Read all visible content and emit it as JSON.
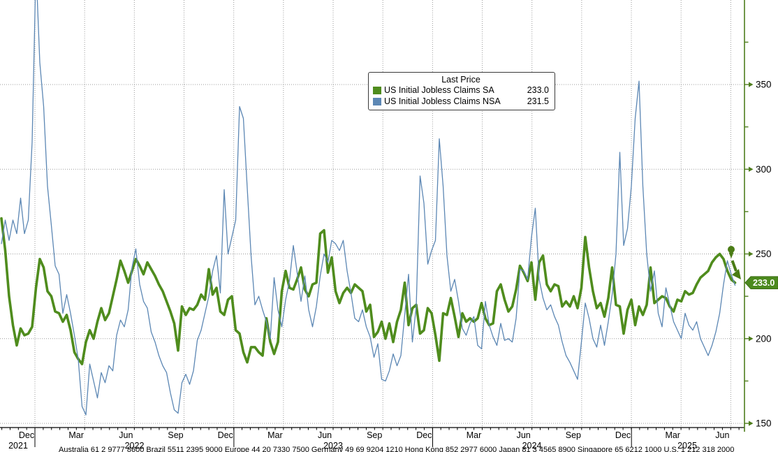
{
  "legend": {
    "title": "Last Price",
    "items": [
      {
        "label": "US Initial Jobless Claims SA",
        "value": "233.0"
      },
      {
        "label": "US Initial Jobless Claims NSA",
        "value": "231.5"
      }
    ]
  },
  "footer": "Australia 61 2 9777 8600 Brazil 5511 2395 9000 Europe 44 20 7330 7500 Germany 49 69 9204 1210 Hong Kong 852 2977 6000 Japan 81 3 4565 8900 Singapore 65 6212 1000 U.S. 1 212 318 2000",
  "chart_data": {
    "type": "line",
    "title": "Last Price",
    "frequency": "weekly",
    "x_range": "Nov 2021 - Jul 2025",
    "grid": true,
    "legend_position": "top-center",
    "y_axis_side": "right",
    "ylim": [
      150,
      350
    ],
    "y_ticks": [
      350,
      300,
      250,
      200,
      150
    ],
    "y_minor_ticks": [
      375,
      325,
      275,
      225,
      175
    ],
    "last_price_label": "233.0",
    "x_month_labels": [
      "Dec",
      "Mar",
      "Jun",
      "Sep",
      "Dec",
      "Mar",
      "Jun",
      "Sep",
      "Dec",
      "Mar",
      "Jun",
      "Sep",
      "Dec",
      "Mar",
      "Jun"
    ],
    "x_year_labels": [
      "2021",
      "2022",
      "2023",
      "2024",
      "2025"
    ],
    "series": [
      {
        "name": "US Initial Jobless Claims SA",
        "color": "#4f8c1d",
        "width": 3.6,
        "last": 233.0,
        "values": [
          271,
          252,
          225,
          208,
          196,
          206,
          202,
          203,
          207,
          230,
          247,
          242,
          228,
          225,
          216,
          215,
          210,
          214,
          205,
          192,
          188,
          185,
          198,
          205,
          200,
          210,
          218,
          211,
          215,
          225,
          235,
          246,
          240,
          233,
          240,
          247,
          243,
          238,
          245,
          241,
          237,
          232,
          228,
          222,
          216,
          209,
          193,
          219,
          214,
          218,
          217,
          220,
          226,
          223,
          241,
          226,
          230,
          216,
          214,
          223,
          225,
          205,
          203,
          192,
          186,
          195,
          195,
          192,
          190,
          212,
          198,
          191,
          198,
          228,
          240,
          230,
          229,
          235,
          242,
          229,
          225,
          232,
          233,
          262,
          264,
          239,
          248,
          228,
          221,
          227,
          230,
          227,
          232,
          230,
          228,
          216,
          220,
          201,
          204,
          210,
          200,
          209,
          198,
          210,
          217,
          233,
          208,
          218,
          220,
          203,
          205,
          218,
          215,
          202,
          187,
          215,
          214,
          224,
          213,
          201,
          215,
          210,
          212,
          210,
          212,
          221,
          212,
          208,
          209,
          228,
          232,
          223,
          216,
          219,
          229,
          243,
          239,
          234,
          245,
          223,
          245,
          249,
          232,
          228,
          232,
          231,
          219,
          222,
          219,
          225,
          218,
          230,
          260,
          242,
          228,
          218,
          221,
          213,
          224,
          242,
          220,
          219,
          203,
          217,
          223,
          208,
          219,
          214,
          220,
          242,
          221,
          223,
          225,
          224,
          219,
          216,
          223,
          222,
          228,
          226,
          227,
          232,
          236,
          238,
          240,
          245,
          248,
          250,
          247,
          240,
          235,
          233
        ]
      },
      {
        "name": "US Initial Jobless Claims NSA",
        "color": "#5c87b4",
        "width": 1.3,
        "last": 231.5,
        "values": [
          256,
          270,
          258,
          270,
          262,
          283,
          262,
          270,
          316,
          420,
          363,
          337,
          290,
          267,
          243,
          238,
          215,
          226,
          215,
          202,
          188,
          160,
          155,
          185,
          175,
          165,
          180,
          174,
          184,
          181,
          202,
          211,
          207,
          217,
          242,
          253,
          232,
          222,
          218,
          204,
          198,
          190,
          184,
          180,
          168,
          158,
          156,
          174,
          179,
          173,
          181,
          199,
          205,
          215,
          225,
          240,
          249,
          227,
          288,
          250,
          260,
          270,
          337,
          330,
          289,
          249,
          220,
          225,
          217,
          210,
          200,
          236,
          217,
          207,
          223,
          234,
          255,
          239,
          222,
          237,
          217,
          207,
          219,
          237,
          250,
          245,
          258,
          256,
          252,
          258,
          240,
          227,
          212,
          210,
          217,
          207,
          201,
          189,
          197,
          176,
          175,
          181,
          191,
          184,
          190,
          214,
          238,
          198,
          219,
          296,
          280,
          244,
          252,
          258,
          318,
          290,
          249,
          228,
          235,
          222,
          206,
          202,
          209,
          213,
          196,
          194,
          222,
          208,
          201,
          196,
          209,
          199,
          200,
          198,
          212,
          241,
          240,
          235,
          260,
          277,
          235,
          224,
          217,
          220,
          213,
          208,
          198,
          190,
          186,
          181,
          176,
          198,
          221,
          212,
          200,
          195,
          208,
          196,
          210,
          226,
          250,
          310,
          255,
          265,
          290,
          330,
          352,
          290,
          250,
          228,
          240,
          215,
          207,
          230,
          220,
          210,
          205,
          200,
          215,
          208,
          205,
          210,
          200,
          195,
          190,
          196,
          204,
          215,
          232,
          246,
          238,
          231.5
        ]
      }
    ]
  }
}
